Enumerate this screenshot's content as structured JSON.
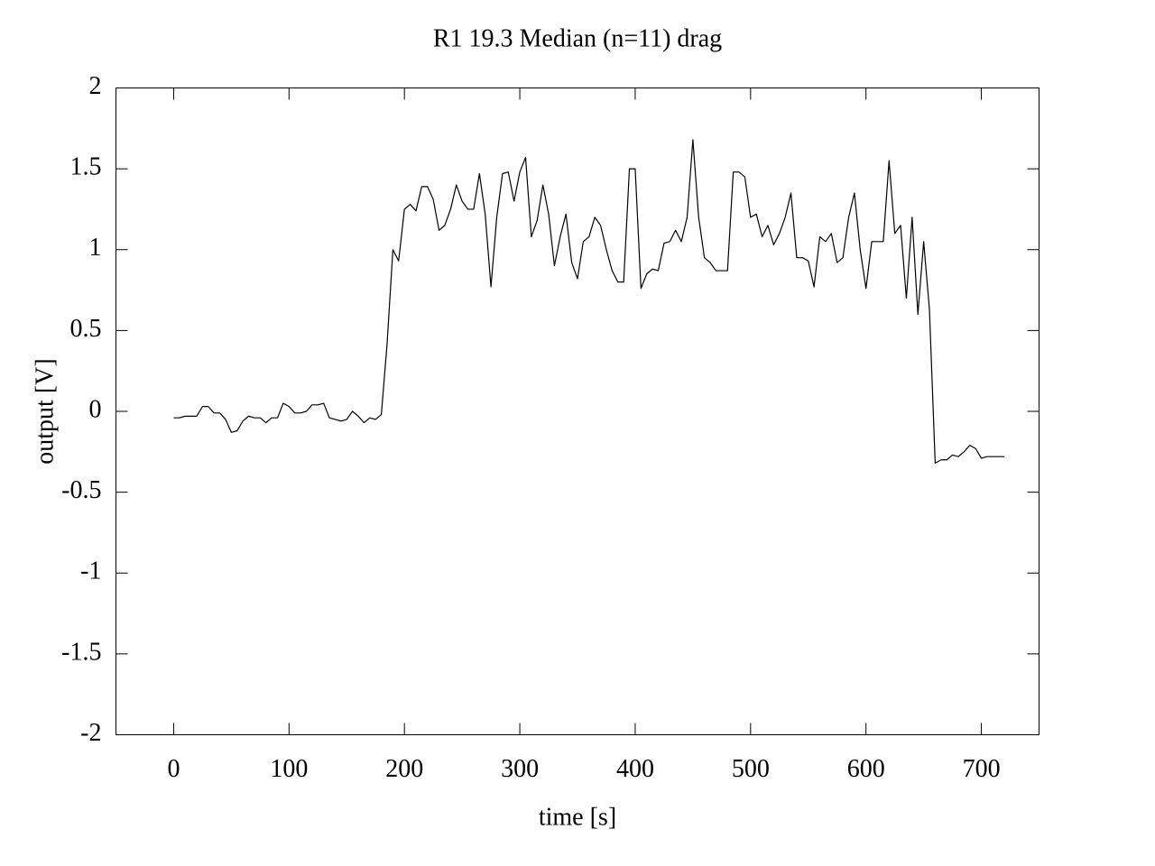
{
  "chart_data": {
    "type": "line",
    "title": "R1 19.3  Median (n=11) drag",
    "x_label": "time [s]",
    "y_label": "output [V]",
    "xlim": [
      -50,
      750
    ],
    "xticks": [
      0,
      100,
      200,
      300,
      400,
      500,
      600,
      700
    ],
    "ylim": [
      -2,
      2
    ],
    "yticks": [
      -2,
      -1.5,
      -1,
      -0.5,
      0,
      0.5,
      1,
      1.5,
      2
    ],
    "grid": false,
    "x": [
      0,
      5,
      10,
      15,
      20,
      25,
      30,
      35,
      40,
      45,
      50,
      55,
      60,
      65,
      70,
      75,
      80,
      85,
      90,
      95,
      100,
      105,
      110,
      115,
      120,
      125,
      130,
      135,
      140,
      145,
      150,
      155,
      160,
      165,
      170,
      175,
      180,
      185,
      190,
      195,
      200,
      205,
      210,
      215,
      220,
      225,
      230,
      235,
      240,
      245,
      250,
      255,
      260,
      265,
      270,
      275,
      280,
      285,
      290,
      295,
      300,
      305,
      310,
      315,
      320,
      325,
      330,
      335,
      340,
      345,
      350,
      355,
      360,
      365,
      370,
      375,
      380,
      385,
      390,
      395,
      400,
      405,
      410,
      415,
      420,
      425,
      430,
      435,
      440,
      445,
      450,
      455,
      460,
      465,
      470,
      475,
      480,
      485,
      490,
      495,
      500,
      505,
      510,
      515,
      520,
      525,
      530,
      535,
      540,
      545,
      550,
      555,
      560,
      565,
      570,
      575,
      580,
      585,
      590,
      595,
      600,
      605,
      610,
      615,
      620,
      625,
      630,
      635,
      640,
      645,
      650,
      655,
      660,
      665,
      670,
      675,
      680,
      685,
      690,
      695,
      700,
      705,
      710,
      715,
      720
    ],
    "series": [
      {
        "color": "#000000",
        "values": [
          -0.04,
          -0.04,
          -0.03,
          -0.03,
          -0.03,
          0.03,
          0.03,
          -0.01,
          -0.01,
          -0.05,
          -0.13,
          -0.12,
          -0.06,
          -0.03,
          -0.04,
          -0.04,
          -0.07,
          -0.04,
          -0.04,
          0.05,
          0.03,
          -0.01,
          -0.01,
          0.0,
          0.04,
          0.04,
          0.05,
          -0.04,
          -0.05,
          -0.06,
          -0.05,
          0.0,
          -0.03,
          -0.07,
          -0.04,
          -0.05,
          -0.02,
          0.42,
          1.0,
          0.93,
          1.25,
          1.28,
          1.24,
          1.39,
          1.39,
          1.31,
          1.12,
          1.15,
          1.25,
          1.4,
          1.3,
          1.25,
          1.25,
          1.47,
          1.22,
          0.77,
          1.2,
          1.47,
          1.48,
          1.3,
          1.48,
          1.57,
          1.08,
          1.18,
          1.4,
          1.22,
          0.9,
          1.08,
          1.22,
          0.92,
          0.82,
          1.05,
          1.08,
          1.2,
          1.15,
          1.0,
          0.87,
          0.8,
          0.8,
          1.5,
          1.5,
          0.76,
          0.85,
          0.88,
          0.87,
          1.04,
          1.05,
          1.12,
          1.05,
          1.2,
          1.68,
          1.2,
          0.95,
          0.92,
          0.87,
          0.87,
          0.87,
          1.48,
          1.48,
          1.45,
          1.2,
          1.22,
          1.08,
          1.15,
          1.03,
          1.1,
          1.2,
          1.35,
          0.95,
          0.95,
          0.93,
          0.77,
          1.08,
          1.05,
          1.1,
          0.92,
          0.95,
          1.2,
          1.35,
          1.0,
          0.76,
          1.05,
          1.05,
          1.05,
          1.55,
          1.1,
          1.15,
          0.7,
          1.2,
          0.6,
          1.05,
          0.63,
          -0.32,
          -0.3,
          -0.3,
          -0.27,
          -0.28,
          -0.25,
          -0.21,
          -0.23,
          -0.29,
          -0.28,
          -0.28,
          -0.28,
          -0.28
        ]
      }
    ]
  }
}
